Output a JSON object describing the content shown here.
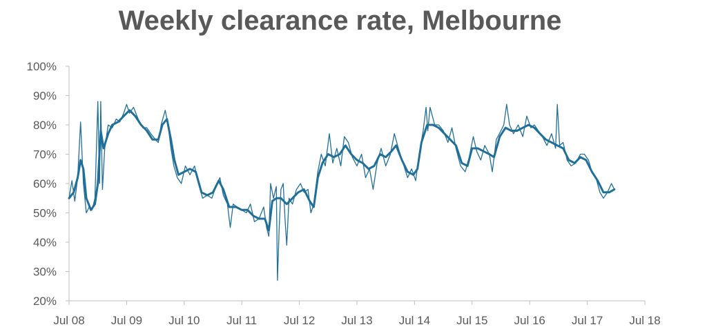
{
  "chart_data": {
    "type": "line",
    "title": "Weekly clearance rate, Melbourne",
    "xlabel": "",
    "ylabel": "",
    "ylim": [
      20,
      100
    ],
    "y_ticks": [
      "20%",
      "30%",
      "40%",
      "50%",
      "60%",
      "70%",
      "80%",
      "90%",
      "100%"
    ],
    "x_ticks": [
      "Jul 08",
      "Jul 09",
      "Jul 10",
      "Jul 11",
      "Jul 12",
      "Jul 13",
      "Jul 14",
      "Jul 15",
      "Jul 16",
      "Jul 17",
      "Jul 18"
    ],
    "x_range": [
      2008.5,
      2018.5
    ],
    "grid": false,
    "colors": {
      "series": "#1f6f99",
      "axis": "#bfbfbf",
      "text": "#595959"
    },
    "series": [
      {
        "style": "weekly",
        "points": [
          [
            2008.5,
            55
          ],
          [
            2008.55,
            61
          ],
          [
            2008.6,
            54
          ],
          [
            2008.65,
            62
          ],
          [
            2008.7,
            81
          ],
          [
            2008.75,
            60
          ],
          [
            2008.8,
            50
          ],
          [
            2008.85,
            52
          ],
          [
            2008.9,
            51
          ],
          [
            2008.95,
            55
          ],
          [
            2009.0,
            88
          ],
          [
            2009.03,
            60
          ],
          [
            2009.05,
            88
          ],
          [
            2009.08,
            58
          ],
          [
            2009.12,
            72
          ],
          [
            2009.18,
            80
          ],
          [
            2009.25,
            79
          ],
          [
            2009.32,
            82
          ],
          [
            2009.38,
            81
          ],
          [
            2009.45,
            84
          ],
          [
            2009.5,
            87
          ],
          [
            2009.55,
            84
          ],
          [
            2009.62,
            86
          ],
          [
            2009.7,
            82
          ],
          [
            2009.78,
            79
          ],
          [
            2009.85,
            79
          ],
          [
            2009.92,
            77
          ],
          [
            2010.0,
            75
          ],
          [
            2010.05,
            74
          ],
          [
            2010.1,
            80
          ],
          [
            2010.17,
            85
          ],
          [
            2010.22,
            80
          ],
          [
            2010.27,
            72
          ],
          [
            2010.32,
            66
          ],
          [
            2010.38,
            62
          ],
          [
            2010.45,
            60
          ],
          [
            2010.52,
            66
          ],
          [
            2010.6,
            63
          ],
          [
            2010.68,
            66
          ],
          [
            2010.75,
            60
          ],
          [
            2010.82,
            55
          ],
          [
            2010.9,
            56
          ],
          [
            2010.98,
            55
          ],
          [
            2011.05,
            59
          ],
          [
            2011.12,
            62
          ],
          [
            2011.18,
            56
          ],
          [
            2011.25,
            53
          ],
          [
            2011.3,
            45
          ],
          [
            2011.35,
            53
          ],
          [
            2011.42,
            52
          ],
          [
            2011.5,
            51
          ],
          [
            2011.58,
            50
          ],
          [
            2011.65,
            53
          ],
          [
            2011.72,
            47
          ],
          [
            2011.8,
            48
          ],
          [
            2011.88,
            52
          ],
          [
            2011.93,
            45
          ],
          [
            2011.97,
            42
          ],
          [
            2012.0,
            60
          ],
          [
            2012.05,
            55
          ],
          [
            2012.1,
            59
          ],
          [
            2012.12,
            27
          ],
          [
            2012.15,
            45
          ],
          [
            2012.18,
            58
          ],
          [
            2012.22,
            60
          ],
          [
            2012.25,
            48
          ],
          [
            2012.28,
            39
          ],
          [
            2012.32,
            55
          ],
          [
            2012.38,
            53
          ],
          [
            2012.45,
            58
          ],
          [
            2012.52,
            60
          ],
          [
            2012.58,
            57
          ],
          [
            2012.65,
            58
          ],
          [
            2012.7,
            50
          ],
          [
            2012.75,
            53
          ],
          [
            2012.82,
            64
          ],
          [
            2012.88,
            70
          ],
          [
            2012.95,
            66
          ],
          [
            2013.02,
            77
          ],
          [
            2013.08,
            67
          ],
          [
            2013.15,
            72
          ],
          [
            2013.22,
            66
          ],
          [
            2013.28,
            76
          ],
          [
            2013.35,
            74
          ],
          [
            2013.42,
            69
          ],
          [
            2013.5,
            66
          ],
          [
            2013.58,
            70
          ],
          [
            2013.65,
            62
          ],
          [
            2013.72,
            65
          ],
          [
            2013.78,
            58
          ],
          [
            2013.85,
            67
          ],
          [
            2013.92,
            72
          ],
          [
            2014.0,
            66
          ],
          [
            2014.08,
            70
          ],
          [
            2014.15,
            77
          ],
          [
            2014.22,
            72
          ],
          [
            2014.3,
            67
          ],
          [
            2014.38,
            62
          ],
          [
            2014.45,
            65
          ],
          [
            2014.52,
            61
          ],
          [
            2014.58,
            70
          ],
          [
            2014.65,
            78
          ],
          [
            2014.7,
            86
          ],
          [
            2014.73,
            78
          ],
          [
            2014.77,
            86
          ],
          [
            2014.85,
            80
          ],
          [
            2014.92,
            80
          ],
          [
            2015.0,
            78
          ],
          [
            2015.08,
            74
          ],
          [
            2015.15,
            79
          ],
          [
            2015.22,
            72
          ],
          [
            2015.3,
            66
          ],
          [
            2015.38,
            64
          ],
          [
            2015.45,
            69
          ],
          [
            2015.52,
            76
          ],
          [
            2015.58,
            71
          ],
          [
            2015.65,
            68
          ],
          [
            2015.72,
            73
          ],
          [
            2015.8,
            70
          ],
          [
            2015.85,
            64
          ],
          [
            2015.92,
            75
          ],
          [
            2016.0,
            78
          ],
          [
            2016.05,
            80
          ],
          [
            2016.1,
            87
          ],
          [
            2016.15,
            80
          ],
          [
            2016.22,
            77
          ],
          [
            2016.3,
            80
          ],
          [
            2016.38,
            76
          ],
          [
            2016.45,
            83
          ],
          [
            2016.52,
            79
          ],
          [
            2016.58,
            80
          ],
          [
            2016.65,
            78
          ],
          [
            2016.72,
            76
          ],
          [
            2016.8,
            73
          ],
          [
            2016.88,
            77
          ],
          [
            2016.95,
            72
          ],
          [
            2016.98,
            87
          ],
          [
            2017.02,
            73
          ],
          [
            2017.08,
            74
          ],
          [
            2017.15,
            68
          ],
          [
            2017.22,
            66
          ],
          [
            2017.3,
            67
          ],
          [
            2017.38,
            70
          ],
          [
            2017.45,
            70
          ],
          [
            2017.52,
            68
          ],
          [
            2017.58,
            64
          ],
          [
            2017.65,
            62
          ],
          [
            2017.72,
            57
          ],
          [
            2017.78,
            55
          ],
          [
            2017.85,
            57
          ],
          [
            2017.92,
            60
          ],
          [
            2017.97,
            58
          ]
        ]
      },
      {
        "style": "smoothed",
        "points": [
          [
            2008.5,
            55
          ],
          [
            2008.58,
            57
          ],
          [
            2008.65,
            62
          ],
          [
            2008.7,
            68
          ],
          [
            2008.75,
            65
          ],
          [
            2008.8,
            55
          ],
          [
            2008.88,
            51
          ],
          [
            2008.95,
            53
          ],
          [
            2009.0,
            60
          ],
          [
            2009.05,
            78
          ],
          [
            2009.1,
            72
          ],
          [
            2009.18,
            77
          ],
          [
            2009.25,
            80
          ],
          [
            2009.35,
            81
          ],
          [
            2009.45,
            83
          ],
          [
            2009.55,
            85
          ],
          [
            2009.65,
            83
          ],
          [
            2009.75,
            80
          ],
          [
            2009.85,
            78
          ],
          [
            2009.95,
            75
          ],
          [
            2010.05,
            75
          ],
          [
            2010.12,
            80
          ],
          [
            2010.2,
            82
          ],
          [
            2010.27,
            75
          ],
          [
            2010.33,
            68
          ],
          [
            2010.4,
            63
          ],
          [
            2010.5,
            64
          ],
          [
            2010.6,
            65
          ],
          [
            2010.7,
            64
          ],
          [
            2010.8,
            57
          ],
          [
            2010.9,
            56
          ],
          [
            2011.0,
            57
          ],
          [
            2011.1,
            61
          ],
          [
            2011.18,
            58
          ],
          [
            2011.28,
            52
          ],
          [
            2011.4,
            52
          ],
          [
            2011.5,
            51
          ],
          [
            2011.6,
            51
          ],
          [
            2011.7,
            49
          ],
          [
            2011.8,
            48
          ],
          [
            2011.9,
            48
          ],
          [
            2011.97,
            44
          ],
          [
            2012.03,
            54
          ],
          [
            2012.1,
            55
          ],
          [
            2012.18,
            55
          ],
          [
            2012.28,
            53
          ],
          [
            2012.38,
            55
          ],
          [
            2012.48,
            57
          ],
          [
            2012.58,
            58
          ],
          [
            2012.68,
            54
          ],
          [
            2012.75,
            52
          ],
          [
            2012.82,
            62
          ],
          [
            2012.9,
            67
          ],
          [
            2013.0,
            70
          ],
          [
            2013.1,
            69
          ],
          [
            2013.2,
            70
          ],
          [
            2013.3,
            73
          ],
          [
            2013.4,
            70
          ],
          [
            2013.5,
            68
          ],
          [
            2013.6,
            67
          ],
          [
            2013.7,
            65
          ],
          [
            2013.8,
            66
          ],
          [
            2013.9,
            70
          ],
          [
            2014.0,
            69
          ],
          [
            2014.1,
            71
          ],
          [
            2014.18,
            73
          ],
          [
            2014.28,
            68
          ],
          [
            2014.38,
            64
          ],
          [
            2014.48,
            63
          ],
          [
            2014.55,
            65
          ],
          [
            2014.62,
            74
          ],
          [
            2014.72,
            80
          ],
          [
            2014.82,
            80
          ],
          [
            2014.92,
            79
          ],
          [
            2015.02,
            77
          ],
          [
            2015.12,
            75
          ],
          [
            2015.22,
            73
          ],
          [
            2015.32,
            67
          ],
          [
            2015.42,
            66
          ],
          [
            2015.5,
            72
          ],
          [
            2015.6,
            72
          ],
          [
            2015.7,
            71
          ],
          [
            2015.8,
            70
          ],
          [
            2015.88,
            69
          ],
          [
            2015.98,
            76
          ],
          [
            2016.08,
            79
          ],
          [
            2016.18,
            78
          ],
          [
            2016.28,
            78
          ],
          [
            2016.38,
            79
          ],
          [
            2016.48,
            80
          ],
          [
            2016.58,
            79
          ],
          [
            2016.68,
            77
          ],
          [
            2016.78,
            75
          ],
          [
            2016.88,
            74
          ],
          [
            2016.98,
            73
          ],
          [
            2017.08,
            72
          ],
          [
            2017.18,
            68
          ],
          [
            2017.28,
            67
          ],
          [
            2017.38,
            69
          ],
          [
            2017.48,
            68
          ],
          [
            2017.58,
            64
          ],
          [
            2017.68,
            61
          ],
          [
            2017.78,
            57
          ],
          [
            2017.88,
            57
          ],
          [
            2017.97,
            58
          ]
        ]
      }
    ]
  }
}
